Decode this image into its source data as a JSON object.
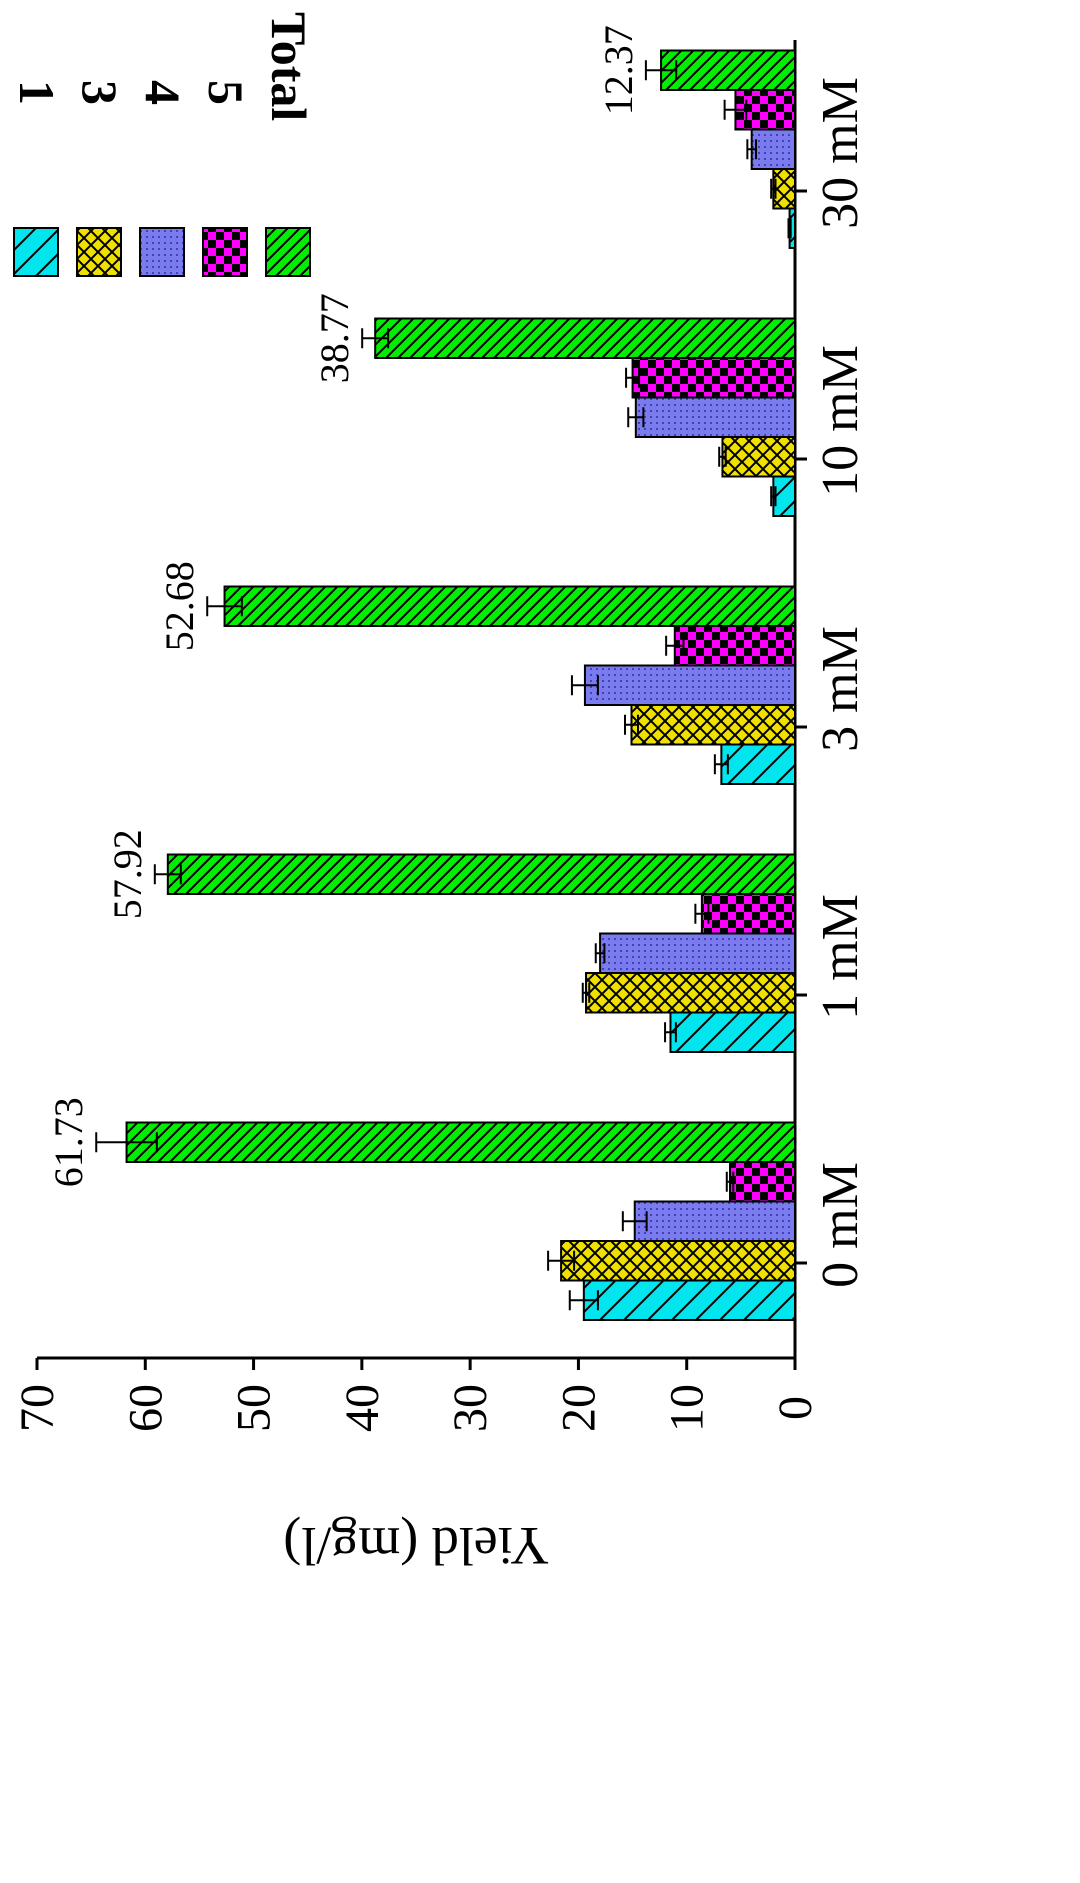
{
  "chart_data": {
    "type": "bar",
    "orientation": "rotated-90-clockwise",
    "ylabel": "Yield (mg/l)",
    "xlabel": "",
    "ylim": [
      0,
      70
    ],
    "yticks": [
      "0",
      "10",
      "20",
      "30",
      "40",
      "50",
      "60",
      "70"
    ],
    "categories": [
      "0 mM",
      "1 mM",
      "3 mM",
      "10 mM",
      "30 mM"
    ],
    "series": [
      {
        "name": "1",
        "color": "#00e5ee",
        "pattern": "diagonal-sparse",
        "values": [
          19.5,
          11.5,
          6.8,
          2.0,
          0.5
        ],
        "errors": [
          1.3,
          0.5,
          0.6,
          0.2,
          0.1
        ]
      },
      {
        "name": "3",
        "color": "#f0e000",
        "pattern": "crosshatch",
        "values": [
          21.6,
          19.3,
          15.1,
          6.7,
          2.0
        ],
        "errors": [
          1.2,
          0.3,
          0.6,
          0.3,
          0.2
        ]
      },
      {
        "name": "4",
        "color": "#7b7bf0",
        "pattern": "dots",
        "values": [
          14.8,
          18.0,
          19.4,
          14.7,
          4.0
        ],
        "errors": [
          1.1,
          0.4,
          1.2,
          0.7,
          0.4
        ]
      },
      {
        "name": "5",
        "color": "#ff00ff",
        "pattern": "checker",
        "values": [
          6.0,
          8.6,
          11.1,
          15.0,
          5.5
        ],
        "errors": [
          0.3,
          0.6,
          0.8,
          0.6,
          1.0
        ]
      },
      {
        "name": "Total",
        "color": "#00ee00",
        "pattern": "diagonal-dense",
        "values": [
          61.73,
          57.92,
          52.68,
          38.77,
          12.37
        ],
        "errors": [
          2.8,
          1.2,
          1.6,
          1.2,
          1.4
        ]
      }
    ],
    "data_labels": [
      "61.73",
      "57.92",
      "52.68",
      "38.77",
      "12.37"
    ],
    "legend": {
      "placement": "top-right",
      "labels": [
        "1",
        "3",
        "4",
        "5",
        "Total"
      ]
    },
    "grid": false
  }
}
